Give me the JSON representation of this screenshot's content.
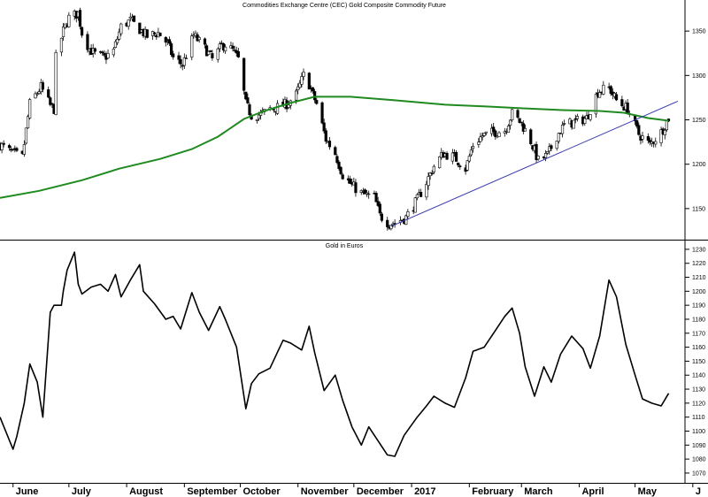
{
  "chart_data": [
    {
      "type": "candlestick",
      "title": "Commodities Exchange Centre (CEC) Gold Composite Commodity Future",
      "ylim": [
        1115,
        1385
      ],
      "yticks": [
        1150,
        1200,
        1250,
        1300,
        1350
      ],
      "grid": false,
      "x_months": [
        "June",
        "July",
        "August",
        "September",
        "October",
        "November",
        "December",
        "2017",
        "February",
        "March",
        "April",
        "May",
        "J"
      ],
      "close_series": {
        "x": [
          "2016-05-25",
          "2016-06-01",
          "2016-06-06",
          "2016-06-10",
          "2016-06-16",
          "2016-06-21",
          "2016-06-23",
          "2016-06-24",
          "2016-06-28",
          "2016-07-01",
          "2016-07-06",
          "2016-07-08",
          "2016-07-12",
          "2016-07-15",
          "2016-07-20",
          "2016-07-25",
          "2016-07-29",
          "2016-08-03",
          "2016-08-08",
          "2016-08-12",
          "2016-08-18",
          "2016-08-23",
          "2016-08-26",
          "2016-08-31",
          "2016-09-06",
          "2016-09-09",
          "2016-09-13",
          "2016-09-16",
          "2016-09-21",
          "2016-09-23",
          "2016-09-27",
          "2016-09-30",
          "2016-10-04",
          "2016-10-07",
          "2016-10-12",
          "2016-10-17",
          "2016-10-21",
          "2016-10-26",
          "2016-10-31",
          "2016-11-04",
          "2016-11-07",
          "2016-11-09",
          "2016-11-11",
          "2016-11-16",
          "2016-11-21",
          "2016-11-25",
          "2016-11-30",
          "2016-12-06",
          "2016-12-12",
          "2016-12-15",
          "2016-12-20",
          "2016-12-23",
          "2016-12-29",
          "2017-01-04",
          "2017-01-09",
          "2017-01-13",
          "2017-01-18",
          "2017-01-24",
          "2017-01-30",
          "2017-02-03",
          "2017-02-08",
          "2017-02-14",
          "2017-02-20",
          "2017-02-24",
          "2017-03-01",
          "2017-03-06",
          "2017-03-10",
          "2017-03-15",
          "2017-03-20",
          "2017-03-24",
          "2017-03-30",
          "2017-04-05",
          "2017-04-11",
          "2017-04-17",
          "2017-04-21",
          "2017-04-27",
          "2017-05-03",
          "2017-05-09",
          "2017-05-15",
          "2017-05-19"
        ],
        "values": [
          1222,
          1212,
          1208,
          1268,
          1287,
          1266,
          1262,
          1320,
          1350,
          1365,
          1370,
          1348,
          1330,
          1324,
          1320,
          1328,
          1355,
          1362,
          1352,
          1344,
          1348,
          1336,
          1320,
          1312,
          1345,
          1338,
          1328,
          1318,
          1333,
          1335,
          1328,
          1318,
          1268,
          1255,
          1256,
          1262,
          1264,
          1268,
          1278,
          1300,
          1290,
          1278,
          1268,
          1228,
          1212,
          1188,
          1176,
          1166,
          1163,
          1142,
          1133,
          1134,
          1140,
          1160,
          1180,
          1198,
          1212,
          1208,
          1195,
          1222,
          1232,
          1236,
          1238,
          1257,
          1246,
          1226,
          1204,
          1210,
          1232,
          1244,
          1248,
          1252,
          1282,
          1286,
          1272,
          1262,
          1234,
          1222,
          1236,
          1252
        ]
      },
      "ma_series": {
        "x": [
          "2016-05-25",
          "2016-06-15",
          "2016-07-08",
          "2016-07-28",
          "2016-08-19",
          "2016-09-05",
          "2016-09-19",
          "2016-10-03",
          "2016-10-14",
          "2016-10-28",
          "2016-11-10",
          "2016-11-29",
          "2016-12-23",
          "2017-01-19",
          "2017-02-10",
          "2017-03-02",
          "2017-03-23",
          "2017-04-12",
          "2017-04-25",
          "2017-05-08",
          "2017-05-19"
        ],
        "values": [
          1162,
          1170,
          1182,
          1195,
          1206,
          1217,
          1231,
          1251,
          1260,
          1269,
          1276,
          1276,
          1272,
          1267,
          1265,
          1263,
          1261,
          1260,
          1258,
          1252,
          1249
        ]
      },
      "trendline": {
        "x": [
          "2016-12-21",
          "2017-05-24"
        ],
        "values": [
          1130,
          1271
        ]
      }
    },
    {
      "type": "line",
      "title": "Gold in Euros",
      "ylim": [
        1063,
        1235
      ],
      "yticks": [
        1070,
        1080,
        1090,
        1100,
        1110,
        1120,
        1130,
        1140,
        1150,
        1160,
        1170,
        1180,
        1190,
        1200,
        1210,
        1220,
        1230
      ],
      "grid": false,
      "series": [
        {
          "x": [
            "2016-05-25",
            "2016-06-01",
            "2016-06-03",
            "2016-06-07",
            "2016-06-10",
            "2016-06-14",
            "2016-06-17",
            "2016-06-21",
            "2016-06-23",
            "2016-06-27",
            "2016-06-28",
            "2016-06-30",
            "2016-07-04",
            "2016-07-06",
            "2016-07-08",
            "2016-07-13",
            "2016-07-18",
            "2016-07-22",
            "2016-07-26",
            "2016-07-29",
            "2016-08-03",
            "2016-08-08",
            "2016-08-10",
            "2016-08-16",
            "2016-08-22",
            "2016-08-26",
            "2016-08-30",
            "2016-09-05",
            "2016-09-09",
            "2016-09-14",
            "2016-09-20",
            "2016-09-23",
            "2016-09-29",
            "2016-10-04",
            "2016-10-07",
            "2016-10-11",
            "2016-10-17",
            "2016-10-24",
            "2016-10-28",
            "2016-11-03",
            "2016-11-07",
            "2016-11-10",
            "2016-11-15",
            "2016-11-21",
            "2016-11-25",
            "2016-11-30",
            "2016-12-05",
            "2016-12-09",
            "2016-12-14",
            "2016-12-19",
            "2016-12-23",
            "2016-12-28",
            "2017-01-04",
            "2017-01-09",
            "2017-01-13",
            "2017-01-19",
            "2017-01-24",
            "2017-01-30",
            "2017-02-03",
            "2017-02-09",
            "2017-02-14",
            "2017-02-20",
            "2017-02-24",
            "2017-02-28",
            "2017-03-03",
            "2017-03-08",
            "2017-03-13",
            "2017-03-17",
            "2017-03-22",
            "2017-03-28",
            "2017-04-03",
            "2017-04-07",
            "2017-04-12",
            "2017-04-17",
            "2017-04-21",
            "2017-04-26",
            "2017-05-01",
            "2017-05-05",
            "2017-05-10",
            "2017-05-15",
            "2017-05-19"
          ],
          "values": [
            1110,
            1087,
            1096,
            1120,
            1148,
            1135,
            1110,
            1185,
            1190,
            1190,
            1200,
            1215,
            1228,
            1205,
            1198,
            1203,
            1205,
            1200,
            1212,
            1196,
            1208,
            1219,
            1200,
            1191,
            1180,
            1182,
            1173,
            1199,
            1185,
            1172,
            1189,
            1180,
            1160,
            1116,
            1134,
            1141,
            1145,
            1165,
            1163,
            1158,
            1175,
            1156,
            1129,
            1140,
            1122,
            1103,
            1090,
            1103,
            1093,
            1083,
            1082,
            1097,
            1110,
            1118,
            1125,
            1120,
            1117,
            1138,
            1157,
            1160,
            1170,
            1182,
            1188,
            1170,
            1146,
            1125,
            1146,
            1135,
            1155,
            1168,
            1159,
            1145,
            1168,
            1208,
            1196,
            1162,
            1140,
            1123,
            1120,
            1118,
            1127
          ]
        }
      ]
    }
  ]
}
